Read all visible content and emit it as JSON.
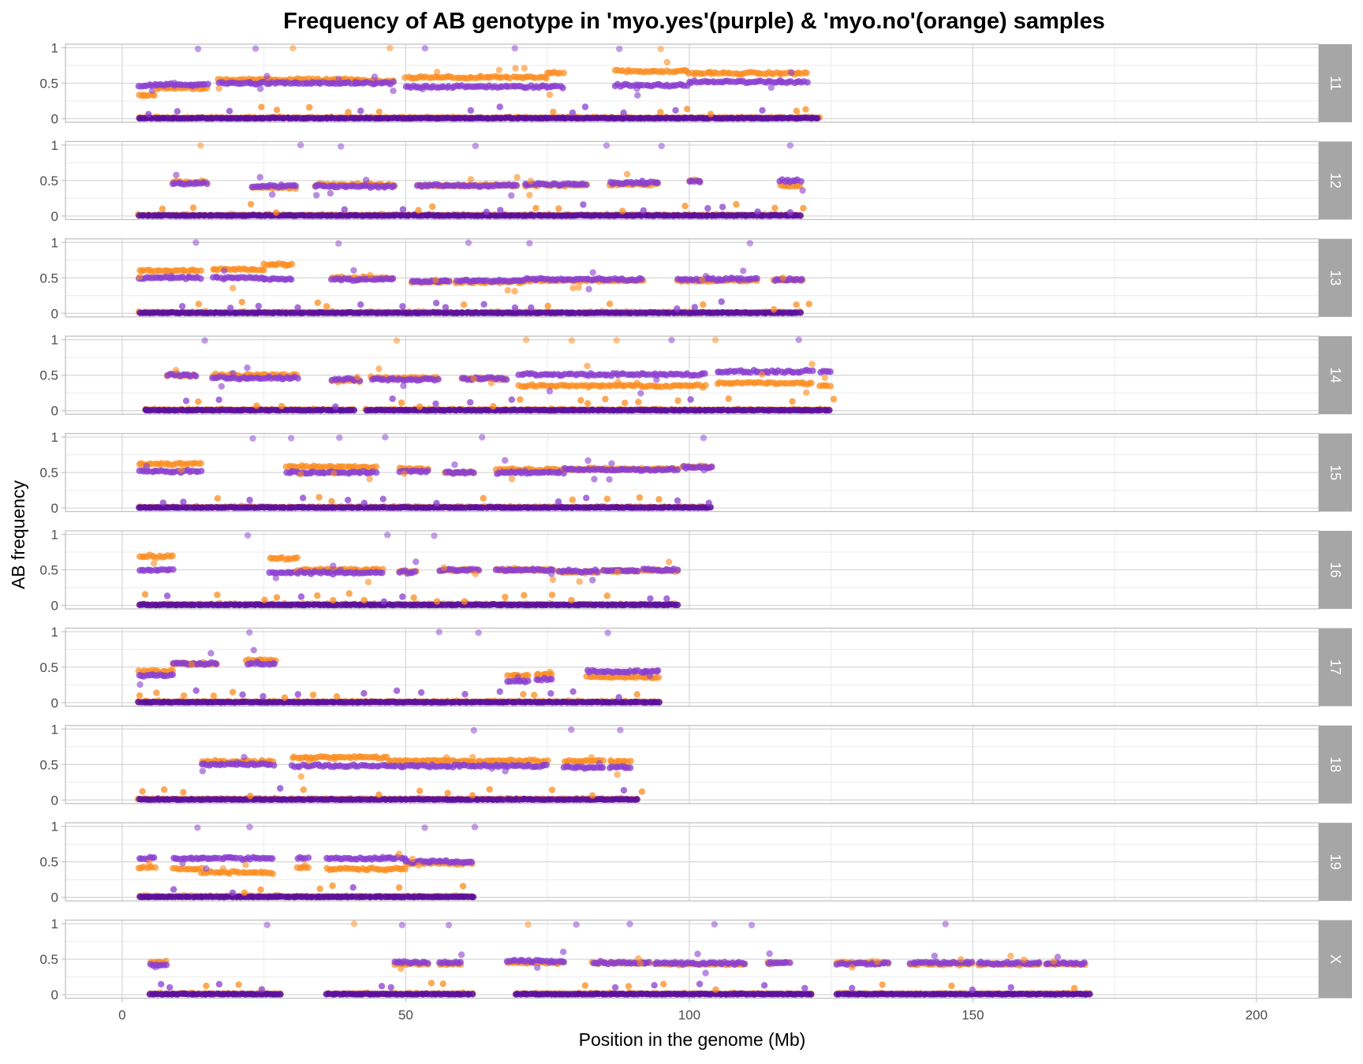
{
  "chart_data": {
    "type": "scatter",
    "title": "Frequency of AB genotype in 'myo.yes'(purple) & 'myo.no'(orange) samples",
    "xlabel": "Position in the genome (Mb)",
    "ylabel": "AB frequency",
    "xlim": [
      -10,
      211
    ],
    "ylim": [
      -0.05,
      1.05
    ],
    "x_ticks": [
      0,
      50,
      100,
      150,
      200
    ],
    "y_ticks": [
      0,
      0.5,
      1
    ],
    "y_tick_labels": [
      "0",
      "0.5",
      "1"
    ],
    "grid": true,
    "legend": "none (colors described in title)",
    "colors": {
      "myo_yes": "#8a3fcf",
      "myo_yes_zero": "#5a0f9e",
      "myo_no": "#fb8c1e",
      "strip": "#a6a6a6",
      "strip_text": "#ffffff"
    },
    "series_names": [
      "myo.yes",
      "myo.no"
    ],
    "panels": [
      {
        "label": "11",
        "range": [
          3,
          123
        ],
        "gaps": [],
        "segments": [
          {
            "x": [
              3,
              6
            ],
            "yes": 0.47,
            "no": 0.33
          },
          {
            "x": [
              6,
              15
            ],
            "yes": 0.48,
            "no": 0.43
          },
          {
            "x": [
              17,
              42
            ],
            "yes": 0.5,
            "no": 0.55
          },
          {
            "x": [
              41,
              48
            ],
            "yes": 0.5,
            "no": 0.53
          },
          {
            "x": [
              50,
              75
            ],
            "yes": 0.45,
            "no": 0.58
          },
          {
            "x": [
              75,
              78
            ],
            "yes": 0.45,
            "no": 0.65
          },
          {
            "x": [
              87,
              100
            ],
            "yes": 0.47,
            "no": 0.67
          },
          {
            "x": [
              100,
              121
            ],
            "yes": 0.52,
            "no": 0.64
          }
        ]
      },
      {
        "label": "12",
        "range": [
          3,
          120
        ],
        "gaps": [],
        "segments": [
          {
            "x": [
              9,
              15
            ],
            "yes": 0.46,
            "no": 0.48
          },
          {
            "x": [
              23,
              31
            ],
            "yes": 0.42,
            "no": 0.4
          },
          {
            "x": [
              34,
              48
            ],
            "yes": 0.42,
            "no": 0.44
          },
          {
            "x": [
              52,
              70
            ],
            "yes": 0.43,
            "no": 0.43
          },
          {
            "x": [
              71,
              82
            ],
            "yes": 0.45,
            "no": 0.43
          },
          {
            "x": [
              86,
              95
            ],
            "yes": 0.47,
            "no": 0.45
          },
          {
            "x": [
              100,
              102
            ],
            "yes": 0.5,
            "no": 0.5
          },
          {
            "x": [
              116,
              120
            ],
            "yes": 0.5,
            "no": 0.43
          }
        ]
      },
      {
        "label": "13",
        "range": [
          3,
          120
        ],
        "gaps": [],
        "segments": [
          {
            "x": [
              3,
              14
            ],
            "yes": 0.5,
            "no": 0.6
          },
          {
            "x": [
              16,
              25
            ],
            "yes": 0.5,
            "no": 0.62
          },
          {
            "x": [
              25,
              30
            ],
            "yes": 0.48,
            "no": 0.69
          },
          {
            "x": [
              37,
              48
            ],
            "yes": 0.48,
            "no": 0.5
          },
          {
            "x": [
              51,
              58
            ],
            "yes": 0.45,
            "no": 0.44
          },
          {
            "x": [
              59,
              71
            ],
            "yes": 0.46,
            "no": 0.44
          },
          {
            "x": [
              71,
              92
            ],
            "yes": 0.48,
            "no": 0.46
          },
          {
            "x": [
              98,
              112
            ],
            "yes": 0.48,
            "no": 0.46
          },
          {
            "x": [
              115,
              120
            ],
            "yes": 0.47,
            "no": 0.47
          }
        ]
      },
      {
        "label": "14",
        "range": [
          4,
          125
        ],
        "gaps": [
          [
            41,
            43
          ]
        ],
        "segments": [
          {
            "x": [
              8,
              13
            ],
            "yes": 0.5,
            "no": 0.5
          },
          {
            "x": [
              16,
              31
            ],
            "yes": 0.46,
            "no": 0.5
          },
          {
            "x": [
              37,
              42
            ],
            "yes": 0.44,
            "no": 0.42
          },
          {
            "x": [
              44,
              56
            ],
            "yes": 0.44,
            "no": 0.46
          },
          {
            "x": [
              60,
              68
            ],
            "yes": 0.45,
            "no": 0.45
          },
          {
            "x": [
              70,
              103
            ],
            "yes": 0.51,
            "no": 0.35
          },
          {
            "x": [
              105,
              122
            ],
            "yes": 0.55,
            "no": 0.39
          },
          {
            "x": [
              123,
              125
            ],
            "yes": 0.55,
            "no": 0.35
          }
        ]
      },
      {
        "label": "15",
        "range": [
          3,
          104
        ],
        "gaps": [],
        "segments": [
          {
            "x": [
              3,
              14
            ],
            "yes": 0.52,
            "no": 0.62
          },
          {
            "x": [
              29,
              45
            ],
            "yes": 0.5,
            "no": 0.58
          },
          {
            "x": [
              49,
              54
            ],
            "yes": 0.52,
            "no": 0.55
          },
          {
            "x": [
              57,
              62
            ],
            "yes": 0.5,
            "no": 0.5
          },
          {
            "x": [
              66,
              78
            ],
            "yes": 0.5,
            "no": 0.54
          },
          {
            "x": [
              78,
              98
            ],
            "yes": 0.54,
            "no": 0.55
          },
          {
            "x": [
              99,
              104
            ],
            "yes": 0.57,
            "no": 0.58
          }
        ]
      },
      {
        "label": "16",
        "range": [
          3,
          98
        ],
        "gaps": [],
        "segments": [
          {
            "x": [
              3,
              9
            ],
            "yes": 0.5,
            "no": 0.69
          },
          {
            "x": [
              26,
              31
            ],
            "yes": 0.46,
            "no": 0.66
          },
          {
            "x": [
              31,
              46
            ],
            "yes": 0.46,
            "no": 0.5
          },
          {
            "x": [
              49,
              52
            ],
            "yes": 0.47,
            "no": 0.48
          },
          {
            "x": [
              56,
              63
            ],
            "yes": 0.5,
            "no": 0.5
          },
          {
            "x": [
              66,
              76
            ],
            "yes": 0.5,
            "no": 0.5
          },
          {
            "x": [
              77,
              84
            ],
            "yes": 0.48,
            "no": 0.47
          },
          {
            "x": [
              85,
              91
            ],
            "yes": 0.49,
            "no": 0.48
          },
          {
            "x": [
              92,
              98
            ],
            "yes": 0.5,
            "no": 0.49
          }
        ]
      },
      {
        "label": "17",
        "range": [
          3,
          95
        ],
        "gaps": [],
        "segments": [
          {
            "x": [
              3,
              9
            ],
            "yes": 0.39,
            "no": 0.44
          },
          {
            "x": [
              9,
              17
            ],
            "yes": 0.55,
            "no": 0.55
          },
          {
            "x": [
              22,
              27
            ],
            "yes": 0.55,
            "no": 0.6
          },
          {
            "x": [
              68,
              72
            ],
            "yes": 0.3,
            "no": 0.38
          },
          {
            "x": [
              73,
              76
            ],
            "yes": 0.33,
            "no": 0.4
          },
          {
            "x": [
              82,
              95
            ],
            "yes": 0.44,
            "no": 0.36
          }
        ]
      },
      {
        "label": "18",
        "range": [
          3,
          91
        ],
        "gaps": [],
        "segments": [
          {
            "x": [
              14,
              27
            ],
            "yes": 0.5,
            "no": 0.54
          },
          {
            "x": [
              30,
              47
            ],
            "yes": 0.48,
            "no": 0.6
          },
          {
            "x": [
              47,
              75
            ],
            "yes": 0.48,
            "no": 0.55
          },
          {
            "x": [
              78,
              85
            ],
            "yes": 0.46,
            "no": 0.55
          },
          {
            "x": [
              86,
              90
            ],
            "yes": 0.46,
            "no": 0.55
          }
        ]
      },
      {
        "label": "19",
        "range": [
          3,
          62
        ],
        "gaps": [],
        "segments": [
          {
            "x": [
              3,
              6
            ],
            "yes": 0.55,
            "no": 0.42
          },
          {
            "x": [
              9,
              14
            ],
            "yes": 0.55,
            "no": 0.4
          },
          {
            "x": [
              14,
              27
            ],
            "yes": 0.55,
            "no": 0.35
          },
          {
            "x": [
              31,
              33
            ],
            "yes": 0.55,
            "no": 0.42
          },
          {
            "x": [
              36,
              50
            ],
            "yes": 0.55,
            "no": 0.4
          },
          {
            "x": [
              50,
              62
            ],
            "yes": 0.5,
            "no": 0.48
          }
        ]
      },
      {
        "label": "X",
        "range": [
          5,
          171
        ],
        "gaps": [
          [
            28,
            36
          ],
          [
            62,
            69
          ],
          [
            122,
            126
          ]
        ],
        "segments": [
          {
            "x": [
              5,
              8
            ],
            "yes": 0.42,
            "no": 0.46
          },
          {
            "x": [
              48,
              54
            ],
            "yes": 0.45,
            "no": 0.43
          },
          {
            "x": [
              56,
              60
            ],
            "yes": 0.45,
            "no": 0.43
          },
          {
            "x": [
              68,
              78
            ],
            "yes": 0.47,
            "no": 0.45
          },
          {
            "x": [
              83,
              93
            ],
            "yes": 0.45,
            "no": 0.45
          },
          {
            "x": [
              94,
              110
            ],
            "yes": 0.44,
            "no": 0.43
          },
          {
            "x": [
              114,
              118
            ],
            "yes": 0.45,
            "no": 0.45
          },
          {
            "x": [
              126,
              135
            ],
            "yes": 0.44,
            "no": 0.45
          },
          {
            "x": [
              139,
              150
            ],
            "yes": 0.45,
            "no": 0.43
          },
          {
            "x": [
              151,
              162
            ],
            "yes": 0.44,
            "no": 0.43
          },
          {
            "x": [
              163,
              170
            ],
            "yes": 0.44,
            "no": 0.43
          }
        ]
      }
    ]
  }
}
